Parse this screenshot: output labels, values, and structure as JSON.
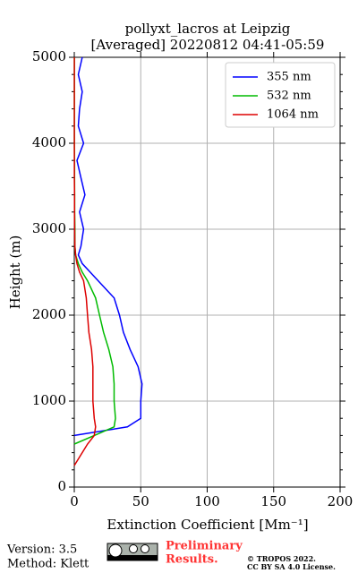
{
  "chart_data": {
    "type": "line",
    "title": "pollyxt_lacros at Leipzig",
    "subtitle": "[Averaged] 20220812 04:41-05:59",
    "x_label": "Extinction Coefficient [Mm⁻¹]",
    "y_label": "Height (m)",
    "y": [
      250,
      500,
      600,
      700,
      800,
      1000,
      1200,
      1400,
      1600,
      1800,
      2000,
      2200,
      2400,
      2500,
      2600,
      2700,
      2800,
      3000,
      3200,
      3400,
      3600,
      3800,
      4000,
      4200,
      4400,
      4600,
      4800,
      5000
    ],
    "series": [
      {
        "name": "355 nm",
        "color": "#0000ff",
        "values": [
          null,
          null,
          0,
          40,
          50,
          50,
          51,
          48,
          42,
          37,
          34,
          30,
          18,
          12,
          6,
          3,
          5,
          7,
          4,
          8,
          5,
          2,
          7,
          3,
          4,
          6,
          3,
          6
        ]
      },
      {
        "name": "532 nm",
        "color": "#00bb00",
        "values": [
          null,
          0,
          15,
          30,
          31,
          30,
          30,
          29,
          26,
          22,
          19,
          16,
          10,
          6,
          3,
          1,
          0.5,
          0.5,
          0.3,
          0.3,
          0.2,
          0.2,
          0.1,
          0.1,
          0.1,
          0.1,
          0.1,
          0.1
        ]
      },
      {
        "name": "1064 nm",
        "color": "#dd0000",
        "values": [
          0,
          10,
          15,
          16,
          15,
          14,
          14,
          14,
          13,
          11,
          10,
          9,
          7,
          4,
          2,
          1,
          0.5,
          0.3,
          0.2,
          0.2,
          0.1,
          0.1,
          0.1,
          0.1,
          0.1,
          0.1,
          0.1,
          0.1
        ]
      }
    ],
    "xlim": [
      0,
      200
    ],
    "xticks": [
      0,
      50,
      100,
      150,
      200
    ],
    "ylim": [
      0,
      5000
    ],
    "yticks": [
      0,
      1000,
      2000,
      3000,
      4000,
      5000
    ],
    "grid": true,
    "legend": "upper right"
  },
  "footer": {
    "version": "Version: 3.5",
    "method": "Method: Klett",
    "preliminary": [
      "Preliminary",
      "Results."
    ],
    "copyright": [
      "© TROPOS 2022.",
      "CC BY SA 4.0 License."
    ]
  }
}
